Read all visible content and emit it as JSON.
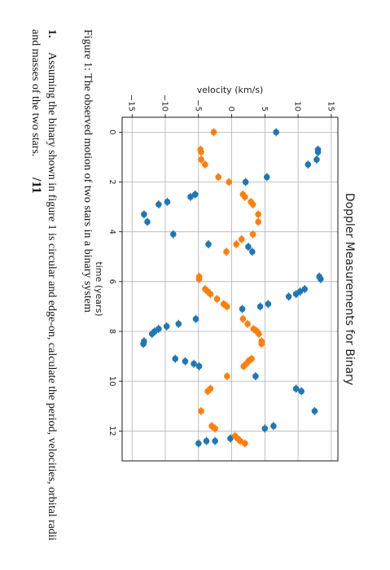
{
  "figure": {
    "caption": "Figure 1: The observed motion of two stars in a binary system"
  },
  "question": {
    "number": "1.",
    "text_line1": "Assuming the binary shown in figure 1 is circular and edge-on, calculate the period, velocities, orbital radii",
    "text_line2": "and masses of the two stars.",
    "marks": "/11"
  },
  "colors": {
    "series_blue": "#1f77b4",
    "series_orange": "#ff7f0e",
    "grid": "#b0b0b0",
    "axis": "#000000"
  },
  "chart_data": {
    "type": "scatter",
    "title": "Doppler Measurements for Binary",
    "xlabel": "time (years)",
    "ylabel": "velocity (km/s)",
    "xlim": [
      -0.6,
      13.2
    ],
    "ylim": [
      -16.5,
      16
    ],
    "xticks": [
      0,
      2,
      4,
      6,
      8,
      10,
      12
    ],
    "yticks": [
      -15,
      -10,
      -5,
      0,
      5,
      10,
      15
    ],
    "grid": true,
    "error_bars": "horizontal",
    "series": [
      {
        "color": "#1f77b4",
        "points": [
          [
            0.0,
            6.7
          ],
          [
            0.7,
            13.0
          ],
          [
            0.8,
            13.0
          ],
          [
            1.1,
            12.8
          ],
          [
            1.3,
            11.5
          ],
          [
            1.8,
            5.3
          ],
          [
            2.0,
            2.1
          ],
          [
            2.5,
            -5.5
          ],
          [
            2.6,
            -6.2
          ],
          [
            2.8,
            -9.7
          ],
          [
            2.9,
            -11.0
          ],
          [
            3.3,
            -13.2
          ],
          [
            3.6,
            -12.7
          ],
          [
            4.1,
            -8.8
          ],
          [
            4.5,
            -3.5
          ],
          [
            4.6,
            2.5
          ],
          [
            4.8,
            3.1
          ],
          [
            5.8,
            13.2
          ],
          [
            5.9,
            13.4
          ],
          [
            6.3,
            11.0
          ],
          [
            6.4,
            10.3
          ],
          [
            6.5,
            9.7
          ],
          [
            6.6,
            8.6
          ],
          [
            6.9,
            5.5
          ],
          [
            7.0,
            4.3
          ],
          [
            7.1,
            1.6
          ],
          [
            7.5,
            -5.4
          ],
          [
            7.7,
            -8.0
          ],
          [
            7.8,
            -9.8
          ],
          [
            7.9,
            -11.0
          ],
          [
            8.0,
            -11.6
          ],
          [
            8.1,
            -12.0
          ],
          [
            8.4,
            -13.2
          ],
          [
            8.5,
            -13.3
          ],
          [
            9.1,
            -8.5
          ],
          [
            9.2,
            -7.0
          ],
          [
            9.3,
            -5.7
          ],
          [
            9.4,
            -4.9
          ],
          [
            9.8,
            3.6
          ],
          [
            10.3,
            9.7
          ],
          [
            10.4,
            10.5
          ],
          [
            11.2,
            12.5
          ],
          [
            11.8,
            6.3
          ],
          [
            11.9,
            5.0
          ],
          [
            12.3,
            -0.2
          ],
          [
            12.4,
            -2.5
          ],
          [
            12.4,
            -3.8
          ],
          [
            12.5,
            -5.0
          ]
        ]
      },
      {
        "color": "#ff7f0e",
        "points": [
          [
            0.0,
            -2.7
          ],
          [
            0.7,
            -4.7
          ],
          [
            0.8,
            -4.6
          ],
          [
            1.1,
            -4.6
          ],
          [
            1.3,
            -4.0
          ],
          [
            1.8,
            -2.0
          ],
          [
            2.0,
            -0.4
          ],
          [
            2.5,
            1.7
          ],
          [
            2.6,
            2.0
          ],
          [
            2.8,
            2.9
          ],
          [
            2.9,
            3.2
          ],
          [
            3.3,
            4.0
          ],
          [
            3.6,
            4.0
          ],
          [
            4.1,
            3.2
          ],
          [
            4.3,
            1.5
          ],
          [
            4.5,
            0.7
          ],
          [
            4.8,
            -0.8
          ],
          [
            5.8,
            -4.9
          ],
          [
            5.9,
            -4.9
          ],
          [
            6.3,
            -4.0
          ],
          [
            6.4,
            -3.6
          ],
          [
            6.5,
            -3.2
          ],
          [
            6.7,
            -2.2
          ],
          [
            6.9,
            -1.2
          ],
          [
            7.0,
            -0.7
          ],
          [
            7.5,
            1.7
          ],
          [
            7.7,
            2.4
          ],
          [
            7.9,
            3.3
          ],
          [
            8.0,
            3.8
          ],
          [
            8.1,
            4.1
          ],
          [
            8.4,
            4.5
          ],
          [
            8.5,
            4.5
          ],
          [
            9.1,
            3.0
          ],
          [
            9.2,
            2.5
          ],
          [
            9.3,
            2.2
          ],
          [
            9.4,
            1.8
          ],
          [
            9.8,
            -0.7
          ],
          [
            10.3,
            -3.2
          ],
          [
            10.4,
            -3.6
          ],
          [
            11.2,
            -4.6
          ],
          [
            11.8,
            -3.0
          ],
          [
            11.9,
            -2.5
          ],
          [
            12.2,
            0.5
          ],
          [
            12.3,
            0.9
          ],
          [
            12.4,
            1.3
          ],
          [
            12.5,
            2.0
          ]
        ]
      }
    ]
  }
}
